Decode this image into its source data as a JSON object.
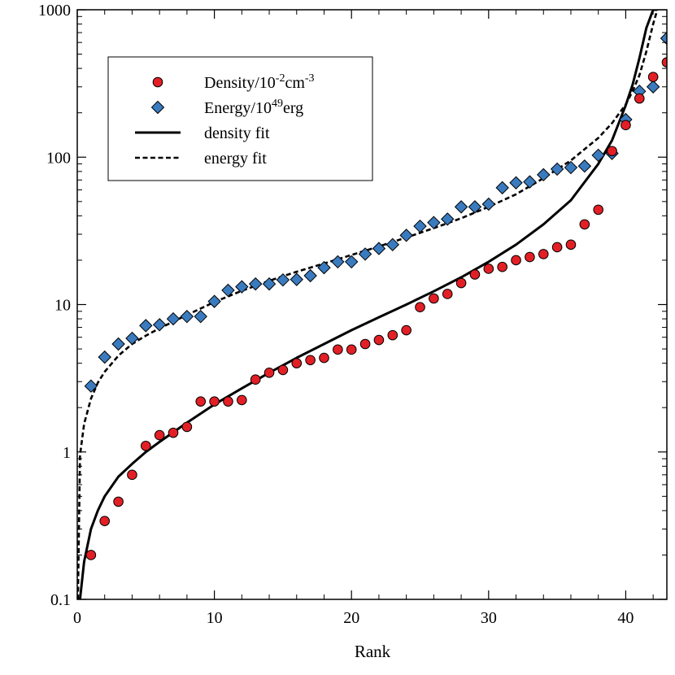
{
  "chart_data": {
    "type": "scatter",
    "xlabel": "Rank",
    "ylabel": "",
    "xlim": [
      0,
      43
    ],
    "ylim": [
      0.1,
      1000
    ],
    "yscale": "log",
    "x_ticks": [
      0,
      10,
      20,
      30,
      40
    ],
    "x_tick_labels": [
      "0",
      "10",
      "20",
      "30",
      "40"
    ],
    "y_ticks": [
      0.1,
      1,
      10,
      100,
      1000
    ],
    "y_tick_labels": [
      "0.1",
      "1",
      "10",
      "100",
      "1000"
    ],
    "grid": false,
    "legend_position": "top-left",
    "legend": [
      {
        "key": "density",
        "marker": "circle",
        "parts": [
          [
            "Density/10",
            ""
          ],
          [
            "-2",
            "sup"
          ],
          [
            "cm",
            ""
          ],
          [
            "-3",
            "sup"
          ]
        ]
      },
      {
        "key": "energy",
        "marker": "diamond",
        "parts": [
          [
            "Energy/10",
            ""
          ],
          [
            "49",
            "sup"
          ],
          [
            "erg",
            ""
          ]
        ]
      },
      {
        "key": "density_fit",
        "marker": "solid-line",
        "parts": [
          [
            "density fit",
            ""
          ]
        ]
      },
      {
        "key": "energy_fit",
        "marker": "dashed-line",
        "parts": [
          [
            "energy fit",
            ""
          ]
        ]
      }
    ],
    "colors": {
      "density": "#e31f26",
      "energy": "#3a7bbf",
      "fit": "#000000",
      "marker_edge": "#000000"
    },
    "series": [
      {
        "key": "density",
        "x": [
          1,
          2,
          3,
          4,
          5,
          6,
          7,
          8,
          9,
          10,
          11,
          12,
          13,
          14,
          15,
          16,
          17,
          18,
          19,
          20,
          21,
          22,
          23,
          24,
          25,
          26,
          27,
          28,
          29,
          30,
          31,
          32,
          33,
          34,
          35,
          36,
          37,
          38,
          39,
          40,
          41,
          42,
          43
        ],
        "y": [
          0.2,
          0.34,
          0.46,
          0.7,
          1.1,
          1.3,
          1.35,
          1.48,
          2.2,
          2.2,
          2.2,
          2.25,
          3.1,
          3.45,
          3.6,
          4.0,
          4.2,
          4.35,
          4.95,
          4.95,
          5.4,
          5.75,
          6.2,
          6.7,
          9.6,
          11.0,
          11.8,
          14.0,
          16.0,
          17.5,
          18.0,
          20.0,
          21.0,
          22.0,
          24.5,
          25.5,
          35.0,
          44.0,
          110.0,
          165.0,
          250.0,
          350.0,
          440.0
        ]
      },
      {
        "key": "energy",
        "x": [
          1,
          2,
          3,
          4,
          5,
          6,
          7,
          8,
          9,
          10,
          11,
          12,
          13,
          14,
          15,
          16,
          17,
          18,
          19,
          20,
          21,
          22,
          23,
          24,
          25,
          26,
          27,
          28,
          29,
          30,
          31,
          32,
          33,
          34,
          35,
          36,
          37,
          38,
          39,
          40,
          41,
          42,
          43
        ],
        "y": [
          2.8,
          4.4,
          5.4,
          5.9,
          7.2,
          7.3,
          8.0,
          8.3,
          8.3,
          10.5,
          12.5,
          13.2,
          13.8,
          13.8,
          14.7,
          14.8,
          15.7,
          17.8,
          19.5,
          19.5,
          22.0,
          24.0,
          25.5,
          29.5,
          34.0,
          36.0,
          38.0,
          46.0,
          46.0,
          48.0,
          62.0,
          67.0,
          68.0,
          76.0,
          83.0,
          85.0,
          87.0,
          103.0,
          106.0,
          180.0,
          280.0,
          300.0,
          640.0
        ]
      },
      {
        "key": "density_fit",
        "x": [
          0.2,
          0.5,
          1,
          1.5,
          2,
          3,
          4,
          5,
          6,
          8,
          10,
          12,
          14,
          16,
          18,
          20,
          22,
          24,
          26,
          28,
          30,
          32,
          34,
          36,
          38,
          39,
          40,
          40.5,
          41,
          41.5,
          42,
          42.3
        ],
        "y": [
          0.1,
          0.18,
          0.3,
          0.4,
          0.5,
          0.68,
          0.83,
          1.0,
          1.17,
          1.58,
          2.1,
          2.7,
          3.45,
          4.35,
          5.4,
          6.7,
          8.2,
          10.0,
          12.3,
          15.3,
          19.5,
          25.5,
          35.0,
          51.0,
          90.0,
          130.0,
          225.0,
          310.0,
          470.0,
          750.0,
          1000.0,
          1000.0
        ]
      },
      {
        "key": "energy_fit",
        "x": [
          0.05,
          0.2,
          0.5,
          1,
          1.5,
          2,
          3,
          4,
          5,
          6,
          8,
          10,
          12,
          14,
          16,
          18,
          20,
          22,
          24,
          26,
          28,
          30,
          32,
          34,
          36,
          38,
          39,
          40,
          40.5,
          41,
          41.5,
          42,
          42.3
        ],
        "y": [
          0.1,
          0.95,
          1.55,
          2.3,
          2.95,
          3.5,
          4.5,
          5.4,
          6.15,
          6.9,
          8.5,
          10.4,
          12.4,
          14.5,
          16.7,
          19.0,
          21.7,
          24.8,
          28.5,
          33.0,
          38.5,
          46.0,
          56.0,
          72.0,
          95.0,
          135.0,
          170.0,
          228.0,
          280.0,
          360.0,
          520.0,
          800.0,
          1000.0
        ]
      }
    ]
  }
}
